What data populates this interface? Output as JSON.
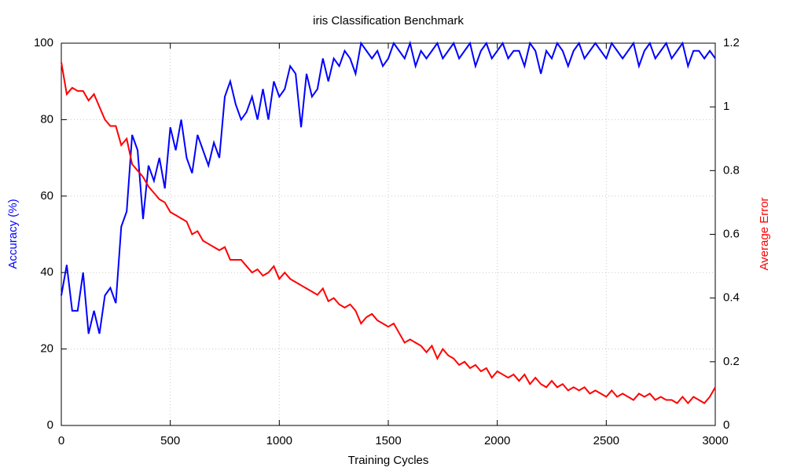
{
  "chart_data": {
    "type": "line",
    "title": "iris Classification Benchmark",
    "x_label": "Training Cycles",
    "y_label": "Accuracy (%)",
    "y2_label": "Average Error",
    "x": [
      0,
      25,
      50,
      75,
      100,
      125,
      150,
      175,
      200,
      225,
      250,
      275,
      300,
      325,
      350,
      375,
      400,
      425,
      450,
      475,
      500,
      525,
      550,
      575,
      600,
      625,
      650,
      675,
      700,
      725,
      750,
      775,
      800,
      825,
      850,
      875,
      900,
      925,
      950,
      975,
      1000,
      1025,
      1050,
      1075,
      1100,
      1125,
      1150,
      1175,
      1200,
      1225,
      1250,
      1275,
      1300,
      1325,
      1350,
      1375,
      1400,
      1425,
      1450,
      1475,
      1500,
      1525,
      1550,
      1575,
      1600,
      1625,
      1650,
      1675,
      1700,
      1725,
      1750,
      1775,
      1800,
      1825,
      1850,
      1875,
      1900,
      1925,
      1950,
      1975,
      2000,
      2025,
      2050,
      2075,
      2100,
      2125,
      2150,
      2175,
      2200,
      2225,
      2250,
      2275,
      2300,
      2325,
      2350,
      2375,
      2400,
      2425,
      2450,
      2475,
      2500,
      2525,
      2550,
      2575,
      2600,
      2625,
      2650,
      2675,
      2700,
      2725,
      2750,
      2775,
      2800,
      2825,
      2850,
      2875,
      2900,
      2925,
      2950,
      2975,
      3000
    ],
    "series": [
      {
        "name": "Accuracy",
        "color": "#0000ff",
        "axis": "y",
        "values": [
          34,
          42,
          30,
          30,
          40,
          24,
          30,
          24,
          34,
          36,
          32,
          52,
          56,
          76,
          72,
          54,
          68,
          64,
          70,
          62,
          78,
          72,
          80,
          70,
          66,
          76,
          72,
          68,
          74,
          70,
          86,
          90,
          84,
          80,
          82,
          86,
          80,
          88,
          80,
          90,
          86,
          88,
          94,
          92,
          78,
          92,
          86,
          88,
          96,
          90,
          96,
          94,
          98,
          96,
          92,
          100,
          98,
          96,
          98,
          94,
          96,
          100,
          98,
          96,
          100,
          94,
          98,
          96,
          98,
          100,
          96,
          98,
          100,
          96,
          98,
          100,
          94,
          98,
          100,
          96,
          98,
          100,
          96,
          98,
          98,
          94,
          100,
          98,
          92,
          98,
          96,
          100,
          98,
          94,
          98,
          100,
          96,
          98,
          100,
          98,
          96,
          100,
          98,
          96,
          98,
          100,
          94,
          98,
          100,
          96,
          98,
          100,
          96,
          98,
          100,
          94,
          98,
          98,
          96,
          98,
          96
        ]
      },
      {
        "name": "Average Error",
        "color": "#ff0000",
        "axis": "y2",
        "values": [
          1.14,
          1.04,
          1.06,
          1.05,
          1.05,
          1.02,
          1.04,
          1.0,
          0.96,
          0.94,
          0.94,
          0.88,
          0.9,
          0.82,
          0.8,
          0.78,
          0.75,
          0.73,
          0.71,
          0.7,
          0.67,
          0.66,
          0.65,
          0.64,
          0.6,
          0.61,
          0.58,
          0.57,
          0.56,
          0.55,
          0.56,
          0.52,
          0.52,
          0.52,
          0.5,
          0.48,
          0.49,
          0.47,
          0.48,
          0.5,
          0.46,
          0.48,
          0.46,
          0.45,
          0.44,
          0.43,
          0.42,
          0.41,
          0.43,
          0.39,
          0.4,
          0.38,
          0.37,
          0.38,
          0.36,
          0.32,
          0.34,
          0.35,
          0.33,
          0.32,
          0.31,
          0.32,
          0.29,
          0.26,
          0.27,
          0.26,
          0.25,
          0.23,
          0.25,
          0.21,
          0.24,
          0.22,
          0.21,
          0.19,
          0.2,
          0.18,
          0.19,
          0.17,
          0.18,
          0.15,
          0.17,
          0.16,
          0.15,
          0.16,
          0.14,
          0.16,
          0.13,
          0.15,
          0.13,
          0.12,
          0.14,
          0.12,
          0.13,
          0.11,
          0.12,
          0.11,
          0.12,
          0.1,
          0.11,
          0.1,
          0.09,
          0.11,
          0.09,
          0.1,
          0.09,
          0.08,
          0.1,
          0.09,
          0.1,
          0.08,
          0.09,
          0.08,
          0.08,
          0.07,
          0.09,
          0.07,
          0.09,
          0.08,
          0.07,
          0.09,
          0.12
        ]
      }
    ],
    "xlim": [
      0,
      3000
    ],
    "xticks": [
      0,
      500,
      1000,
      1500,
      2000,
      2500,
      3000
    ],
    "ylim": [
      0,
      100
    ],
    "yticks": [
      0,
      20,
      40,
      60,
      80,
      100
    ],
    "y2lim": [
      0,
      1.2
    ],
    "y2ticks": [
      0,
      0.2,
      0.4,
      0.6,
      0.8,
      1,
      1.2
    ],
    "grid": true
  }
}
